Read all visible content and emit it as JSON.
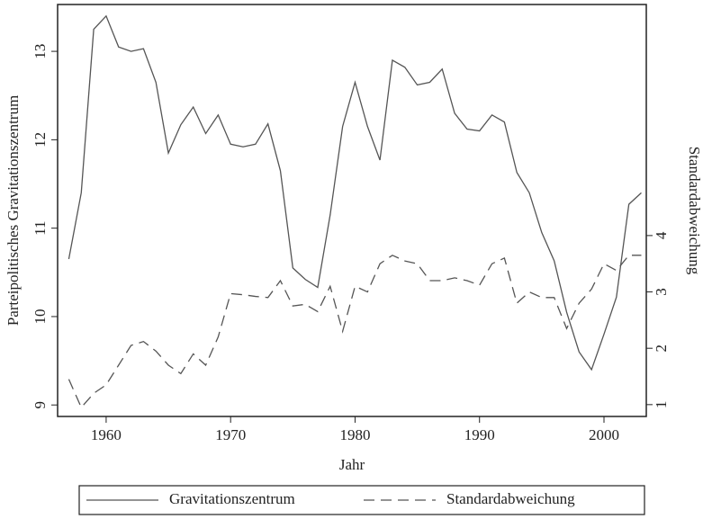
{
  "chart_data": {
    "type": "line",
    "xlabel": "Jahr",
    "ylabel": "Parteipolitisches Gravitationszentrum",
    "y2label": "Standardabweichung",
    "x": [
      1957,
      1958,
      1959,
      1960,
      1961,
      1962,
      1963,
      1964,
      1965,
      1966,
      1967,
      1968,
      1969,
      1970,
      1971,
      1972,
      1973,
      1974,
      1975,
      1976,
      1977,
      1978,
      1979,
      1980,
      1981,
      1982,
      1983,
      1984,
      1985,
      1986,
      1987,
      1988,
      1989,
      1990,
      1991,
      1992,
      1993,
      1994,
      1995,
      1996,
      1997,
      1998,
      1999,
      2000,
      2001,
      2002,
      2003
    ],
    "series": [
      {
        "name": "Gravitationszentrum",
        "color": "#555555",
        "dash": "solid",
        "axis": "y",
        "values": [
          10.65,
          11.4,
          13.25,
          13.4,
          13.05,
          13.0,
          13.03,
          12.65,
          11.85,
          12.17,
          12.37,
          12.07,
          12.28,
          11.95,
          11.92,
          11.95,
          12.18,
          11.65,
          10.55,
          10.42,
          10.33,
          11.15,
          12.15,
          12.65,
          12.15,
          11.77,
          12.9,
          12.82,
          12.62,
          12.65,
          12.8,
          12.3,
          12.12,
          12.1,
          12.28,
          12.2,
          11.63,
          11.4,
          10.95,
          10.63,
          10.05,
          9.6,
          9.4,
          9.8,
          10.22,
          11.27,
          11.4
        ]
      },
      {
        "name": "Standardabweichung",
        "color": "#555555",
        "dash": "dashed",
        "axis": "y2",
        "values": [
          1.45,
          0.95,
          1.2,
          1.35,
          1.7,
          2.05,
          2.12,
          1.95,
          1.7,
          1.55,
          1.9,
          1.7,
          2.2,
          2.97,
          2.95,
          2.92,
          2.9,
          3.2,
          2.75,
          2.78,
          2.65,
          3.1,
          2.3,
          3.1,
          3.0,
          3.5,
          3.65,
          3.55,
          3.5,
          3.2,
          3.2,
          3.25,
          3.2,
          3.12,
          3.5,
          3.6,
          2.8,
          3.0,
          2.9,
          2.9,
          2.35,
          2.8,
          3.05,
          3.5,
          3.38,
          3.65,
          3.65
        ]
      }
    ],
    "xlim": [
      1956.1,
      2003.4
    ],
    "xticks": [
      1960,
      1970,
      1980,
      1990,
      2000
    ],
    "ylim": [
      8.87,
      13.53
    ],
    "yticks": [
      9,
      10,
      11,
      12,
      13
    ],
    "y2lim": [
      0.79,
      8.1
    ],
    "y2ticks": [
      1,
      2,
      3,
      4
    ],
    "legend": "bottom"
  }
}
